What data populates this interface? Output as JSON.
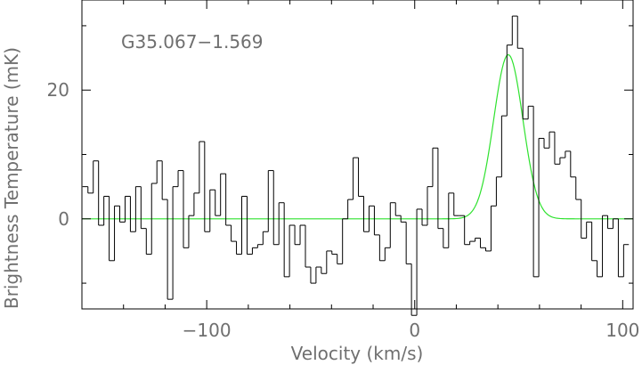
{
  "chart_data": {
    "type": "line",
    "title": "G35.067−1.569",
    "xlabel": "Velocity (km/s)",
    "ylabel": "Brightness Temperature (mK)",
    "xlim": [
      -160,
      105
    ],
    "ylim": [
      -14,
      34
    ],
    "x_ticks": [
      -100,
      0,
      100
    ],
    "x_tick_labels": [
      "−100",
      "0",
      "100"
    ],
    "y_ticks": [
      0,
      20
    ],
    "y_tick_labels": [
      "0",
      "20"
    ],
    "series": [
      {
        "style": "steps",
        "color": "#000000",
        "x": [
          -158.4,
          -155.8,
          -153.3,
          -150.7,
          -148.2,
          -145.6,
          -143.1,
          -140.5,
          -138.0,
          -135.4,
          -132.9,
          -130.3,
          -127.8,
          -125.2,
          -122.7,
          -120.1,
          -117.6,
          -115.0,
          -112.5,
          -109.9,
          -107.4,
          -104.8,
          -102.3,
          -99.7,
          -97.2,
          -94.6,
          -92.1,
          -89.5,
          -87.0,
          -84.4,
          -81.9,
          -79.3,
          -76.8,
          -74.2,
          -71.7,
          -69.1,
          -66.6,
          -64.0,
          -61.5,
          -58.9,
          -56.4,
          -53.8,
          -51.3,
          -48.7,
          -46.2,
          -43.6,
          -41.1,
          -38.5,
          -36.0,
          -33.4,
          -30.9,
          -28.3,
          -25.8,
          -23.2,
          -20.7,
          -18.1,
          -15.6,
          -13.0,
          -10.5,
          -7.9,
          -5.4,
          -2.8,
          -0.3,
          2.3,
          4.8,
          7.4,
          9.9,
          12.5,
          15.0,
          17.6,
          20.1,
          22.7,
          25.2,
          27.8,
          30.3,
          32.9,
          35.4,
          38.0,
          40.5,
          43.1,
          45.6,
          48.2,
          50.7,
          53.3,
          55.8,
          58.4,
          60.9,
          63.5,
          66.0,
          68.6,
          71.1,
          73.7,
          76.2,
          78.8,
          81.3,
          83.9,
          86.4,
          89.0,
          91.5,
          94.1,
          96.6,
          99.2,
          101.7
        ],
        "values": [
          5.0,
          4.0,
          9.0,
          -1.0,
          3.5,
          -6.5,
          2.0,
          -0.5,
          3.5,
          -2.0,
          5.0,
          -1.5,
          -5.5,
          5.5,
          9.0,
          3.0,
          -12.5,
          5.0,
          7.5,
          -4.5,
          0.5,
          4.0,
          12.0,
          -2.0,
          4.5,
          0.5,
          7.0,
          -1.0,
          -3.5,
          -5.5,
          3.5,
          -5.5,
          -4.5,
          -4.0,
          -2.0,
          7.5,
          -4.0,
          2.5,
          -9.0,
          -1.0,
          -4.0,
          -1.0,
          -7.5,
          -10.0,
          -7.5,
          -8.5,
          -5.0,
          -5.5,
          -7.0,
          0.0,
          3.0,
          9.5,
          3.5,
          -2.0,
          2.0,
          -2.5,
          -6.5,
          -4.5,
          2.5,
          0.5,
          -0.5,
          -7.0,
          -15.0,
          1.5,
          -1.0,
          5.0,
          11.0,
          -1.5,
          -4.5,
          4.0,
          0.5,
          0.5,
          -4.0,
          -3.5,
          -3.0,
          -4.5,
          -5.0,
          2.0,
          6.5,
          16.0,
          27.0,
          31.5,
          26.5,
          15.5,
          17.5,
          -9.0,
          12.5,
          11.0,
          13.5,
          8.5,
          9.5,
          10.5,
          6.5,
          3.0,
          -3.0,
          -0.5,
          -6.5,
          -9.0,
          0.5,
          -1.5,
          0.0,
          -9.0,
          -4.0
        ]
      },
      {
        "style": "line",
        "color": "#2fe22f",
        "fit": "gaussian",
        "amplitude": 25.5,
        "center": 45,
        "fwhm": 16.5,
        "x_range": [
          -160,
          105
        ]
      }
    ],
    "grid": false,
    "legend": "none"
  }
}
